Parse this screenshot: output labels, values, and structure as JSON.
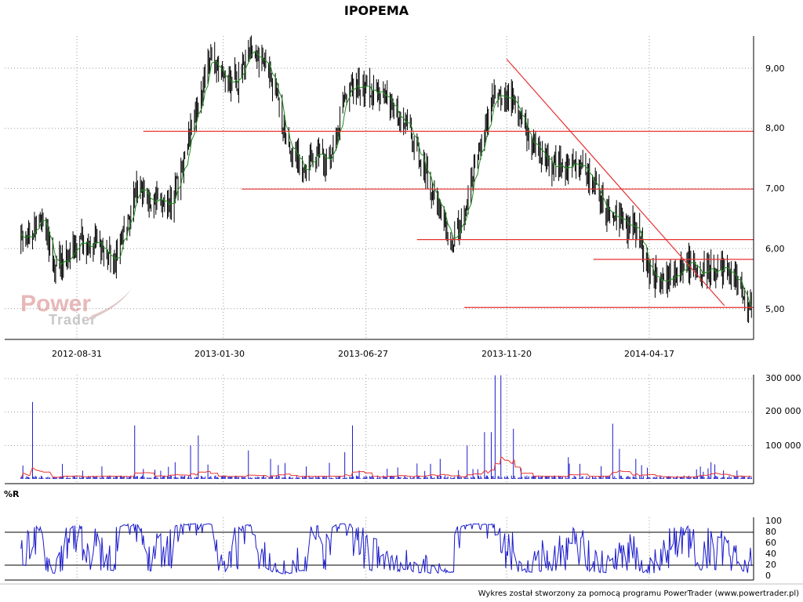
{
  "title": "IPOPEMA",
  "footer": "Wykres został stworzony za pomocą programu PowerTrader (www.powertrader.pl)",
  "watermark": {
    "line1": "Power",
    "line2": "Trader"
  },
  "colors": {
    "bars": "#000000",
    "ma": "#1a8a1a",
    "levels": "#e83030",
    "volume": "#1a1acc",
    "volume_ma": "#e83030",
    "wr": "#1a1acc",
    "grid": "#9a9a9a"
  },
  "chart_data": [
    {
      "type": "candlestick",
      "title": "IPOPEMA",
      "x_ticks": [
        "2012-08-31",
        "2013-01-30",
        "2013-06-27",
        "2013-11-20",
        "2014-04-17"
      ],
      "y_ticks": [
        "9,00",
        "8,00",
        "7,00",
        "6,00",
        "5,00"
      ],
      "ylim": [
        4.45,
        9.95
      ],
      "grid": true,
      "price_path": [
        [
          "2012-07-04",
          6.1
        ],
        [
          "2012-07-25",
          6.5
        ],
        [
          "2012-08-08",
          5.7
        ],
        [
          "2012-08-20",
          5.85
        ],
        [
          "2012-09-03",
          6.15
        ],
        [
          "2012-09-24",
          6.0
        ],
        [
          "2012-10-10",
          5.85
        ],
        [
          "2012-10-22",
          6.3
        ],
        [
          "2012-10-30",
          7.0
        ],
        [
          "2012-11-15",
          6.8
        ],
        [
          "2012-12-05",
          6.7
        ],
        [
          "2012-12-20",
          7.4
        ],
        [
          "2012-12-27",
          8.0
        ],
        [
          "2013-01-10",
          8.7
        ],
        [
          "2013-01-16",
          9.2
        ],
        [
          "2013-01-30",
          8.8
        ],
        [
          "2013-02-14",
          8.8
        ],
        [
          "2013-02-25",
          9.2
        ],
        [
          "2013-03-15",
          9.2
        ],
        [
          "2013-03-25",
          8.6
        ],
        [
          "2013-04-08",
          7.6
        ],
        [
          "2013-04-26",
          7.3
        ],
        [
          "2013-05-09",
          7.55
        ],
        [
          "2013-05-20",
          7.4
        ],
        [
          "2013-06-05",
          8.5
        ],
        [
          "2013-06-17",
          8.75
        ],
        [
          "2013-06-27",
          8.7
        ],
        [
          "2013-07-15",
          8.5
        ],
        [
          "2013-07-25",
          8.4
        ],
        [
          "2013-08-12",
          7.9
        ],
        [
          "2013-08-26",
          7.3
        ],
        [
          "2013-09-05",
          6.9
        ],
        [
          "2013-09-19",
          6.3
        ],
        [
          "2013-09-26",
          6.2
        ],
        [
          "2013-10-07",
          6.5
        ],
        [
          "2013-10-17",
          7.3
        ],
        [
          "2013-11-07",
          8.5
        ],
        [
          "2013-11-20",
          8.6
        ],
        [
          "2013-11-27",
          8.4
        ],
        [
          "2013-12-16",
          7.7
        ],
        [
          "2014-01-06",
          7.4
        ],
        [
          "2014-01-27",
          7.3
        ],
        [
          "2014-02-10",
          7.3
        ],
        [
          "2014-02-20",
          7.0
        ],
        [
          "2014-03-03",
          6.6
        ],
        [
          "2014-03-20",
          6.4
        ],
        [
          "2014-04-03",
          6.35
        ],
        [
          "2014-04-10",
          6.0
        ],
        [
          "2014-04-17",
          5.6
        ],
        [
          "2014-04-28",
          5.5
        ],
        [
          "2014-05-15",
          5.5
        ],
        [
          "2014-05-27",
          5.75
        ],
        [
          "2014-06-24",
          5.65
        ],
        [
          "2014-07-10",
          5.55
        ],
        [
          "2014-07-21",
          5.3
        ],
        [
          "2014-07-29",
          4.9
        ],
        [
          "2014-08-01",
          5.0
        ]
      ],
      "ma_line": true,
      "support_lines": [
        {
          "y": 7.95,
          "from": "2012-11-08",
          "to": "2014-08-04"
        },
        {
          "y": 6.99,
          "from": "2013-02-18",
          "to": "2014-08-04"
        },
        {
          "y": 6.15,
          "from": "2013-08-19",
          "to": "2014-08-04"
        },
        {
          "y": 5.82,
          "from": "2014-02-18",
          "to": "2014-08-04"
        },
        {
          "y": 5.02,
          "from": "2013-10-07",
          "to": "2014-08-04"
        }
      ],
      "trend_line": {
        "from": [
          "2013-11-20",
          9.15
        ],
        "to": [
          "2014-07-04",
          5.05
        ]
      }
    },
    {
      "type": "bar",
      "series": "volume",
      "y_ticks": [
        "300 000",
        "200 000",
        "100 000"
      ],
      "ylim": [
        0,
        320000
      ],
      "base_volume": 4000,
      "spikes": [
        [
          "2012-07-16",
          230000
        ],
        [
          "2012-07-06",
          40000
        ],
        [
          "2012-08-16",
          45000
        ],
        [
          "2012-11-08",
          30000
        ],
        [
          "2012-10-30",
          160000
        ],
        [
          "2012-12-11",
          50000
        ],
        [
          "2012-12-27",
          100000
        ],
        [
          "2013-01-04",
          130000
        ],
        [
          "2013-02-25",
          85000
        ],
        [
          "2013-03-20",
          60000
        ],
        [
          "2013-06-13",
          160000
        ],
        [
          "2013-06-05",
          80000
        ],
        [
          "2013-09-12",
          60000
        ],
        [
          "2013-10-10",
          100000
        ],
        [
          "2013-10-28",
          140000
        ],
        [
          "2013-11-08",
          310000
        ],
        [
          "2013-11-14",
          310000
        ],
        [
          "2013-11-04",
          140000
        ],
        [
          "2013-11-27",
          150000
        ],
        [
          "2014-01-23",
          65000
        ],
        [
          "2014-03-10",
          165000
        ],
        [
          "2014-03-17",
          90000
        ],
        [
          "2014-04-03",
          60000
        ],
        [
          "2014-06-20",
          50000
        ]
      ],
      "ma_line": true
    },
    {
      "type": "line",
      "series": "%R",
      "label": "%R",
      "y_ticks": [
        "100",
        "80",
        "60",
        "40",
        "20",
        "0"
      ],
      "ylim": [
        0,
        100
      ],
      "ref_lines": [
        80,
        20
      ]
    }
  ]
}
